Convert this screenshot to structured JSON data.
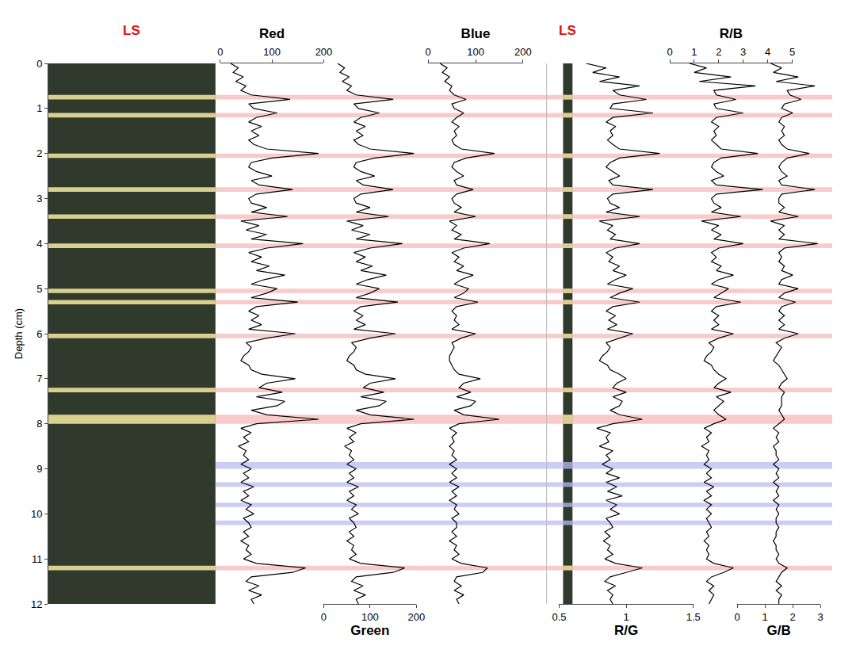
{
  "chart_data": {
    "type": "line",
    "y_title": "Depth (cm)",
    "ylim": [
      12,
      0
    ],
    "yticks": [
      0,
      1,
      2,
      3,
      4,
      5,
      6,
      7,
      8,
      9,
      10,
      11,
      12
    ],
    "grid": false,
    "y": [
      0,
      0.1,
      0.2,
      0.3,
      0.4,
      0.5,
      0.6,
      0.7,
      0.8,
      0.9,
      1,
      1.1,
      1.2,
      1.3,
      1.4,
      1.5,
      1.6,
      1.7,
      1.8,
      1.9,
      2,
      2.1,
      2.2,
      2.3,
      2.4,
      2.5,
      2.6,
      2.7,
      2.8,
      2.9,
      3,
      3.1,
      3.2,
      3.3,
      3.4,
      3.5,
      3.6,
      3.7,
      3.8,
      3.9,
      4,
      4.1,
      4.2,
      4.3,
      4.4,
      4.5,
      4.6,
      4.7,
      4.8,
      4.9,
      5,
      5.1,
      5.2,
      5.3,
      5.4,
      5.5,
      5.6,
      5.7,
      5.8,
      5.9,
      6,
      6.1,
      6.2,
      6.3,
      6.4,
      6.5,
      6.6,
      6.7,
      6.8,
      6.9,
      7,
      7.1,
      7.2,
      7.3,
      7.4,
      7.5,
      7.6,
      7.7,
      7.8,
      7.9,
      8,
      8.1,
      8.2,
      8.3,
      8.4,
      8.5,
      8.6,
      8.7,
      8.8,
      8.9,
      9,
      9.1,
      9.2,
      9.3,
      9.4,
      9.5,
      9.6,
      9.7,
      9.8,
      9.9,
      10,
      10.1,
      10.2,
      10.3,
      10.4,
      10.5,
      10.6,
      10.7,
      10.8,
      10.9,
      11,
      11.1,
      11.2,
      11.3,
      11.4,
      11.5,
      11.6,
      11.7,
      11.8,
      11.9,
      12
    ],
    "panels": [
      {
        "name": "Red",
        "xlim": [
          0,
          200
        ],
        "xticks": [
          0,
          100,
          200
        ],
        "color": "#000000",
        "values": [
          20,
          35,
          25,
          45,
          30,
          50,
          40,
          60,
          135,
          55,
          65,
          110,
          70,
          55,
          80,
          60,
          75,
          55,
          65,
          90,
          190,
          100,
          60,
          55,
          70,
          100,
          60,
          75,
          140,
          70,
          55,
          60,
          90,
          60,
          130,
          40,
          75,
          50,
          90,
          60,
          160,
          90,
          55,
          80,
          60,
          95,
          70,
          125,
          85,
          60,
          110,
          90,
          60,
          150,
          70,
          55,
          75,
          60,
          80,
          55,
          145,
          90,
          50,
          60,
          55,
          45,
          40,
          55,
          60,
          80,
          145,
          90,
          75,
          120,
          70,
          125,
          110,
          60,
          90,
          190,
          70,
          40,
          60,
          45,
          55,
          35,
          50,
          45,
          55,
          40,
          60,
          45,
          55,
          40,
          65,
          45,
          55,
          40,
          60,
          50,
          65,
          45,
          55,
          60,
          45,
          55,
          40,
          55,
          50,
          60,
          45,
          70,
          165,
          140,
          60,
          50,
          75,
          55,
          80,
          60,
          65
        ]
      },
      {
        "name": "Green",
        "xlim": [
          0,
          200
        ],
        "xticks": [
          0,
          100,
          200
        ],
        "color": "#000000",
        "values": [
          30,
          45,
          35,
          55,
          40,
          60,
          50,
          70,
          150,
          65,
          75,
          120,
          80,
          65,
          90,
          70,
          85,
          65,
          75,
          100,
          195,
          110,
          70,
          65,
          80,
          110,
          70,
          85,
          150,
          80,
          65,
          70,
          100,
          70,
          140,
          50,
          85,
          60,
          100,
          70,
          170,
          100,
          65,
          90,
          70,
          105,
          80,
          135,
          95,
          70,
          120,
          100,
          70,
          160,
          80,
          65,
          85,
          70,
          90,
          65,
          155,
          100,
          60,
          70,
          65,
          55,
          50,
          65,
          70,
          90,
          155,
          100,
          85,
          130,
          80,
          135,
          120,
          70,
          100,
          195,
          80,
          50,
          70,
          55,
          65,
          45,
          60,
          55,
          65,
          50,
          70,
          55,
          65,
          50,
          75,
          55,
          65,
          50,
          70,
          60,
          75,
          55,
          65,
          70,
          55,
          65,
          50,
          65,
          60,
          70,
          55,
          80,
          175,
          150,
          70,
          60,
          85,
          65,
          90,
          70,
          75
        ]
      },
      {
        "name": "Blue",
        "xlim": [
          0,
          200
        ],
        "xticks": [
          0,
          100,
          200
        ],
        "color": "#000000",
        "values": [
          25,
          40,
          30,
          45,
          35,
          50,
          45,
          55,
          80,
          50,
          55,
          75,
          60,
          50,
          65,
          55,
          60,
          50,
          55,
          70,
          140,
          80,
          55,
          50,
          60,
          75,
          55,
          60,
          95,
          60,
          50,
          55,
          70,
          55,
          100,
          45,
          60,
          50,
          70,
          55,
          130,
          75,
          50,
          65,
          55,
          75,
          60,
          95,
          70,
          55,
          85,
          75,
          55,
          105,
          60,
          50,
          60,
          55,
          65,
          50,
          100,
          70,
          50,
          55,
          50,
          45,
          45,
          50,
          55,
          65,
          110,
          75,
          65,
          90,
          60,
          100,
          90,
          55,
          75,
          150,
          65,
          45,
          60,
          50,
          55,
          45,
          55,
          50,
          60,
          45,
          60,
          50,
          60,
          45,
          65,
          50,
          60,
          45,
          60,
          55,
          65,
          50,
          60,
          60,
          50,
          60,
          45,
          60,
          55,
          65,
          50,
          70,
          125,
          115,
          60,
          55,
          70,
          55,
          75,
          60,
          65
        ]
      },
      {
        "name": "R/G",
        "xlim": [
          0.5,
          1.5
        ],
        "xticks": [
          0.5,
          1,
          1.5
        ],
        "color": "#000000",
        "values": [
          0.7,
          0.85,
          0.75,
          0.95,
          0.8,
          1.1,
          0.9,
          0.95,
          1.15,
          0.9,
          0.88,
          1.2,
          0.9,
          0.85,
          0.92,
          0.88,
          0.9,
          0.86,
          0.9,
          0.95,
          1.25,
          0.95,
          0.88,
          0.85,
          0.9,
          0.95,
          0.87,
          0.9,
          1.2,
          0.9,
          0.86,
          0.88,
          0.95,
          0.85,
          1.1,
          0.8,
          0.9,
          0.86,
          0.92,
          0.88,
          1.1,
          0.92,
          0.85,
          0.9,
          0.87,
          0.95,
          0.9,
          1.0,
          0.92,
          0.86,
          1.05,
          0.95,
          0.88,
          1.1,
          0.9,
          0.85,
          0.92,
          0.87,
          0.93,
          0.86,
          1.05,
          0.95,
          0.85,
          0.88,
          0.86,
          0.82,
          0.8,
          0.86,
          0.88,
          0.95,
          1.0,
          0.93,
          0.9,
          1.0,
          0.9,
          0.97,
          0.95,
          0.88,
          0.95,
          1.12,
          0.9,
          0.78,
          0.88,
          0.85,
          0.87,
          0.8,
          0.9,
          0.85,
          0.88,
          0.82,
          0.9,
          0.85,
          0.95,
          0.85,
          0.93,
          0.86,
          0.97,
          0.85,
          0.93,
          0.88,
          0.95,
          0.85,
          0.88,
          0.9,
          0.84,
          0.88,
          0.83,
          0.88,
          0.86,
          0.9,
          0.84,
          0.92,
          1.12,
          1.0,
          0.88,
          0.84,
          0.92,
          0.86,
          0.9,
          0.88,
          0.9
        ]
      },
      {
        "name": "R/B",
        "xlim": [
          0,
          5
        ],
        "xticks": [
          0,
          1,
          2,
          3,
          4,
          5
        ],
        "color": "#000000",
        "values": [
          0.8,
          1.5,
          1.0,
          2.5,
          1.2,
          3.5,
          1.8,
          1.9,
          2.7,
          1.8,
          1.9,
          3.0,
          1.9,
          1.7,
          2.0,
          1.8,
          1.9,
          1.7,
          1.9,
          2.1,
          3.6,
          2.1,
          1.8,
          1.7,
          1.9,
          2.2,
          1.7,
          1.9,
          3.8,
          1.9,
          1.7,
          1.8,
          2.1,
          1.7,
          2.9,
          1.3,
          2.0,
          1.7,
          2.1,
          1.8,
          3.0,
          2.0,
          1.7,
          1.9,
          1.7,
          2.1,
          1.9,
          2.6,
          2.0,
          1.7,
          2.4,
          2.1,
          1.8,
          2.9,
          1.9,
          1.7,
          2.0,
          1.8,
          2.0,
          1.7,
          2.6,
          2.0,
          1.6,
          1.8,
          1.7,
          1.5,
          1.4,
          1.7,
          1.8,
          2.0,
          2.3,
          2.0,
          1.8,
          2.5,
          1.9,
          2.2,
          2.0,
          1.8,
          2.0,
          2.3,
          1.8,
          1.4,
          1.7,
          1.5,
          1.6,
          1.3,
          1.6,
          1.5,
          1.6,
          1.4,
          1.7,
          1.5,
          1.7,
          1.4,
          1.8,
          1.5,
          1.7,
          1.4,
          1.7,
          1.5,
          1.7,
          1.5,
          1.6,
          1.7,
          1.5,
          1.6,
          1.4,
          1.6,
          1.5,
          1.6,
          1.5,
          1.8,
          2.6,
          2.2,
          1.7,
          1.5,
          1.8,
          1.6,
          1.8,
          1.7,
          1.6
        ]
      },
      {
        "name": "G/B",
        "xlim": [
          0,
          3
        ],
        "xticks": [
          0,
          1,
          2,
          3
        ],
        "color": "#000000",
        "values": [
          1.2,
          1.6,
          1.3,
          2.2,
          1.4,
          2.8,
          1.8,
          1.9,
          2.3,
          1.7,
          1.6,
          2.0,
          1.6,
          1.5,
          1.7,
          1.6,
          1.7,
          1.5,
          1.6,
          1.8,
          2.6,
          1.8,
          1.6,
          1.5,
          1.6,
          1.8,
          1.5,
          1.6,
          2.8,
          1.6,
          1.5,
          1.5,
          1.7,
          1.5,
          2.2,
          1.2,
          1.7,
          1.5,
          1.7,
          1.5,
          2.9,
          1.7,
          1.5,
          1.6,
          1.5,
          1.7,
          1.6,
          2.0,
          1.6,
          1.5,
          2.2,
          1.7,
          1.5,
          2.1,
          1.6,
          1.5,
          1.7,
          1.5,
          1.7,
          1.5,
          2.2,
          1.7,
          1.4,
          1.6,
          1.5,
          1.4,
          1.3,
          1.5,
          1.6,
          1.7,
          1.8,
          1.6,
          1.5,
          1.7,
          1.6,
          1.6,
          1.6,
          1.5,
          1.6,
          1.7,
          1.5,
          1.3,
          1.5,
          1.4,
          1.5,
          1.3,
          1.4,
          1.4,
          1.5,
          1.3,
          1.5,
          1.4,
          1.5,
          1.3,
          1.5,
          1.4,
          1.5,
          1.3,
          1.5,
          1.4,
          1.5,
          1.4,
          1.4,
          1.5,
          1.4,
          1.4,
          1.3,
          1.4,
          1.4,
          1.5,
          1.4,
          1.5,
          1.8,
          1.6,
          1.5,
          1.4,
          1.6,
          1.4,
          1.6,
          1.5,
          1.5
        ]
      }
    ],
    "bands": [
      {
        "color": "#f5b8b8",
        "ranges": [
          [
            0.7,
            0.8
          ],
          [
            1.1,
            1.2
          ],
          [
            2.0,
            2.1
          ],
          [
            2.75,
            2.85
          ],
          [
            3.35,
            3.45
          ],
          [
            4.0,
            4.1
          ],
          [
            5.0,
            5.1
          ],
          [
            5.25,
            5.35
          ],
          [
            6.0,
            6.1
          ],
          [
            7.2,
            7.3
          ],
          [
            7.8,
            8.0
          ],
          [
            11.15,
            11.25
          ]
        ]
      },
      {
        "color": "#b8bcf2",
        "ranges": [
          [
            8.85,
            9.0
          ],
          [
            9.3,
            9.4
          ],
          [
            9.75,
            9.85
          ],
          [
            10.15,
            10.25
          ]
        ]
      }
    ],
    "annotations": [
      {
        "text": "LS",
        "color": "#e01010"
      },
      {
        "text": "LS",
        "color": "#e01010"
      }
    ]
  }
}
